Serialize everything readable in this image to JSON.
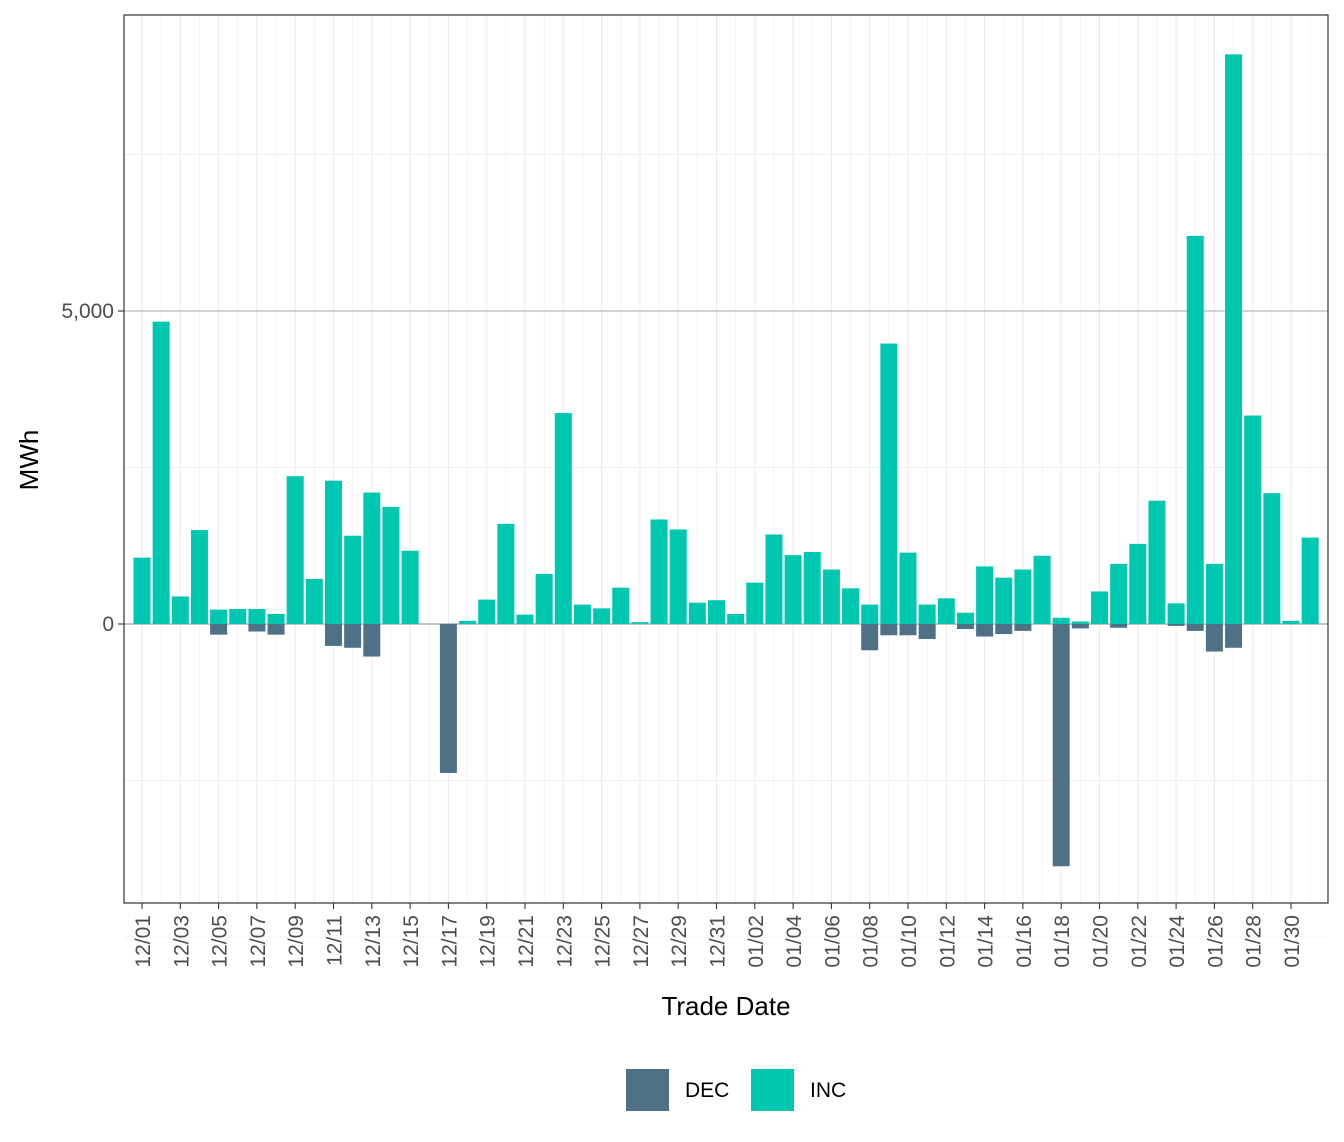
{
  "chart_data": {
    "type": "bar",
    "stacking": "diverging",
    "xlabel": "Trade Date",
    "ylabel": "MWh",
    "ylim": [
      -4500,
      9800
    ],
    "y_ticks": [
      0,
      5000
    ],
    "y_tick_labels": [
      "0",
      "5,000"
    ],
    "grid": true,
    "legend_position": "bottom",
    "categories": [
      "12/01",
      "12/02",
      "12/03",
      "12/04",
      "12/05",
      "12/06",
      "12/07",
      "12/08",
      "12/09",
      "12/10",
      "12/11",
      "12/12",
      "12/13",
      "12/14",
      "12/15",
      "12/16",
      "12/17",
      "12/18",
      "12/19",
      "12/20",
      "12/21",
      "12/22",
      "12/23",
      "12/24",
      "12/25",
      "12/26",
      "12/27",
      "12/28",
      "12/29",
      "12/30",
      "12/31",
      "01/01",
      "01/02",
      "01/03",
      "01/04",
      "01/05",
      "01/06",
      "01/07",
      "01/08",
      "01/09",
      "01/10",
      "01/11",
      "01/12",
      "01/13",
      "01/14",
      "01/15",
      "01/16",
      "01/17",
      "01/18",
      "01/19",
      "01/20",
      "01/21",
      "01/22",
      "01/23",
      "01/24",
      "01/25",
      "01/26",
      "01/27",
      "01/28",
      "01/29",
      "01/30",
      "01/31"
    ],
    "x_tick_labels": [
      "12/01",
      "12/03",
      "12/05",
      "12/07",
      "12/09",
      "12/11",
      "12/13",
      "12/15",
      "12/17",
      "12/19",
      "12/21",
      "12/23",
      "12/25",
      "12/27",
      "12/29",
      "12/31",
      "01/02",
      "01/04",
      "01/06",
      "01/08",
      "01/10",
      "01/12",
      "01/14",
      "01/16",
      "01/18",
      "01/20",
      "01/22",
      "01/24",
      "01/26",
      "01/28",
      "01/30"
    ],
    "series": [
      {
        "name": "DEC",
        "color": "#4f7185",
        "values": [
          0,
          0,
          0,
          0,
          -170,
          0,
          -120,
          -170,
          0,
          0,
          -350,
          -380,
          -520,
          0,
          0,
          0,
          -2380,
          0,
          0,
          0,
          0,
          0,
          0,
          0,
          0,
          0,
          0,
          0,
          0,
          0,
          0,
          0,
          0,
          0,
          0,
          0,
          0,
          0,
          -420,
          -180,
          -180,
          -240,
          0,
          -80,
          -200,
          -160,
          -110,
          0,
          -3870,
          -70,
          0,
          -60,
          0,
          0,
          -30,
          -110,
          -440,
          -380,
          0,
          0,
          0,
          0
        ]
      },
      {
        "name": "INC",
        "color": "#00c7b0",
        "values": [
          1060,
          4830,
          440,
          1500,
          230,
          240,
          240,
          160,
          2360,
          720,
          2290,
          1410,
          2100,
          1870,
          1170,
          0,
          0,
          50,
          390,
          1600,
          150,
          800,
          3370,
          310,
          250,
          580,
          30,
          1670,
          1510,
          340,
          380,
          160,
          660,
          1430,
          1100,
          1150,
          870,
          570,
          310,
          4480,
          1140,
          310,
          410,
          180,
          920,
          740,
          870,
          1090,
          100,
          40,
          520,
          960,
          1280,
          1970,
          330,
          6200,
          960,
          9100,
          3330,
          2090,
          50,
          1380
        ]
      }
    ]
  }
}
